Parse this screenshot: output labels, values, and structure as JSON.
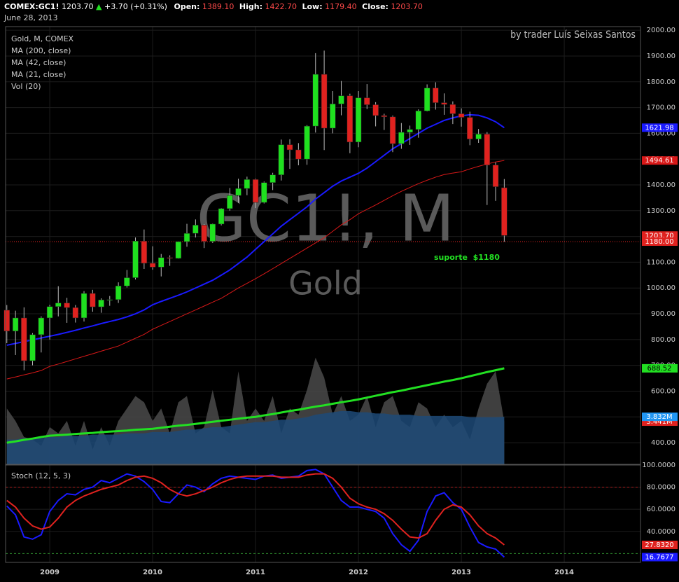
{
  "header": {
    "symbol": "COMEX:GC1!",
    "last": "1203.70",
    "arrow": "▲",
    "change": "+3.70 (+0.31%)",
    "date": "June 28, 2013",
    "ohlc": [
      {
        "label": "Open:",
        "value": "1389.10"
      },
      {
        "label": "High:",
        "value": "1422.70"
      },
      {
        "label": "Low:",
        "value": "1179.40"
      },
      {
        "label": "Close:",
        "value": "1203.70"
      }
    ]
  },
  "chart_data": [
    {
      "type": "candlestick",
      "credit": "by trader Luís Seixas Santos",
      "watermark": "GC1!, M",
      "watermark_sub": "Gold",
      "legend": [
        "Gold, M, COMEX",
        "MA (200, close)",
        "MA (42, close)",
        "MA (21, close)",
        "Vol (20)"
      ],
      "up_color": "#1fe01f",
      "down_color": "#e0221f",
      "x": [
        2008.583,
        2008.667,
        2008.75,
        2008.833,
        2008.917,
        2009,
        2009.083,
        2009.167,
        2009.25,
        2009.333,
        2009.417,
        2009.5,
        2009.583,
        2009.667,
        2009.75,
        2009.833,
        2009.917,
        2010,
        2010.083,
        2010.167,
        2010.25,
        2010.333,
        2010.417,
        2010.5,
        2010.583,
        2010.667,
        2010.75,
        2010.833,
        2010.917,
        2011,
        2011.083,
        2011.167,
        2011.25,
        2011.333,
        2011.417,
        2011.5,
        2011.583,
        2011.667,
        2011.75,
        2011.833,
        2011.917,
        2012,
        2012.083,
        2012.167,
        2012.25,
        2012.333,
        2012.417,
        2012.5,
        2012.583,
        2012.667,
        2012.75,
        2012.833,
        2012.917,
        2013,
        2013.083,
        2013.167,
        2013.25,
        2013.333,
        2013.417
      ],
      "open": [
        914,
        833,
        884,
        718,
        819,
        884,
        928,
        942,
        924,
        884,
        979,
        927,
        954,
        955,
        1008,
        1040,
        1182,
        1096,
        1081,
        1118,
        1115,
        1180,
        1212,
        1244,
        1181,
        1248,
        1308,
        1359,
        1386,
        1421,
        1332,
        1409,
        1439,
        1556,
        1536,
        1500,
        1628,
        1829,
        1620,
        1714,
        1746,
        1566,
        1738,
        1711,
        1669,
        1664,
        1560,
        1604,
        1615,
        1687,
        1776,
        1719,
        1712,
        1676,
        1662,
        1578,
        1597,
        1477,
        1389.1
      ],
      "high": [
        934,
        912,
        925,
        825,
        890,
        935,
        1007,
        962,
        934,
        988,
        993,
        960,
        969,
        1022,
        1070,
        1196,
        1227,
        1162,
        1132,
        1127,
        1180,
        1249,
        1266,
        1248,
        1250,
        1310,
        1388,
        1424,
        1432,
        1424,
        1413,
        1447,
        1576,
        1577,
        1562,
        1632,
        1911,
        1921,
        1764,
        1803,
        1754,
        1764,
        1791,
        1721,
        1676,
        1669,
        1640,
        1630,
        1693,
        1790,
        1798,
        1755,
        1724,
        1697,
        1684,
        1617,
        1605,
        1487,
        1422.7
      ],
      "low": [
        786,
        740,
        681,
        700,
        750,
        800,
        890,
        865,
        866,
        870,
        908,
        904,
        931,
        942,
        1002,
        1033,
        1074,
        1071,
        1045,
        1086,
        1114,
        1160,
        1196,
        1155,
        1175,
        1243,
        1300,
        1330,
        1360,
        1310,
        1328,
        1380,
        1417,
        1462,
        1476,
        1478,
        1603,
        1535,
        1600,
        1670,
        1523,
        1546,
        1694,
        1627,
        1613,
        1527,
        1540,
        1555,
        1583,
        1685,
        1692,
        1672,
        1636,
        1626,
        1554,
        1563,
        1322,
        1338,
        1179.4
      ],
      "close": [
        833,
        884,
        718,
        819,
        884,
        928,
        942,
        924,
        884,
        979,
        927,
        954,
        955,
        1008,
        1040,
        1182,
        1096,
        1081,
        1118,
        1115,
        1180,
        1212,
        1244,
        1181,
        1248,
        1308,
        1359,
        1386,
        1421,
        1332,
        1409,
        1439,
        1556,
        1536,
        1500,
        1628,
        1829,
        1620,
        1714,
        1746,
        1566,
        1738,
        1711,
        1669,
        1664,
        1560,
        1604,
        1615,
        1687,
        1776,
        1719,
        1712,
        1676,
        1662,
        1578,
        1597,
        1477,
        1393,
        1203.7
      ],
      "close_label": "1203.70",
      "series": [
        {
          "color": "#22e022",
          "width": 3,
          "last_label": "688.52",
          "values": [
            400,
            405,
            411,
            416,
            422,
            427,
            429,
            431,
            434,
            436,
            438,
            441,
            443,
            445,
            447,
            450,
            452,
            454,
            458,
            462,
            466,
            469,
            473,
            477,
            481,
            485,
            489,
            493,
            497,
            500,
            506,
            511,
            517,
            523,
            528,
            534,
            540,
            545,
            551,
            557,
            562,
            568,
            575,
            582,
            589,
            596,
            602,
            609,
            616,
            623,
            630,
            637,
            643,
            650,
            658,
            666,
            674,
            681,
            688.52
          ]
        },
        {
          "color": "#d81818",
          "width": 1,
          "last_label": "1494.61",
          "values": [
            647,
            655,
            663,
            671,
            680,
            696,
            705,
            715,
            725,
            735,
            745,
            755,
            765,
            775,
            790,
            805,
            820,
            840,
            855,
            870,
            885,
            900,
            915,
            930,
            945,
            960,
            980,
            1000,
            1018,
            1036,
            1055,
            1075,
            1095,
            1115,
            1135,
            1155,
            1175,
            1195,
            1220,
            1245,
            1265,
            1288,
            1305,
            1322,
            1340,
            1358,
            1375,
            1390,
            1405,
            1418,
            1430,
            1440,
            1446,
            1451,
            1462,
            1472,
            1481,
            1489,
            1494.61
          ]
        },
        {
          "color": "#1a1aff",
          "width": 2,
          "last_label": "1621.98",
          "values": [
            778,
            785,
            792,
            799,
            806,
            813,
            820,
            828,
            836,
            845,
            853,
            862,
            870,
            878,
            888,
            900,
            915,
            935,
            948,
            960,
            972,
            985,
            1000,
            1015,
            1030,
            1050,
            1070,
            1095,
            1120,
            1150,
            1180,
            1210,
            1240,
            1265,
            1290,
            1315,
            1345,
            1370,
            1395,
            1415,
            1430,
            1445,
            1465,
            1490,
            1515,
            1540,
            1560,
            1580,
            1600,
            1620,
            1635,
            1650,
            1660,
            1668,
            1672,
            1670,
            1660,
            1645,
            1621.98
          ]
        }
      ],
      "support": {
        "value": 1180,
        "label": "1180.00",
        "annotation": "suporte  $1180",
        "color": "#e0221f",
        "text_color": "#22e022"
      },
      "volume": {
        "ylim": [
          0,
          9.2
        ],
        "series": [
          {
            "color": "#4a4a4a",
            "label_color": "#e0221f",
            "last_label": "3.441M",
            "values": [
              4.5,
              3.5,
              2.2,
              2.0,
              1.5,
              3.0,
              2.5,
              3.5,
              1.5,
              3.5,
              1.2,
              3.0,
              1.5,
              3.5,
              4.5,
              5.5,
              5.0,
              3.5,
              4.5,
              2.5,
              5.0,
              5.5,
              2.5,
              3.0,
              6.0,
              3.0,
              2.5,
              7.5,
              3.5,
              4.5,
              3.5,
              5.5,
              2.5,
              4.5,
              4.0,
              6.0,
              8.6,
              7.0,
              4.0,
              5.5,
              3.5,
              4.0,
              5.5,
              3.0,
              5.0,
              5.5,
              3.5,
              3.0,
              5.0,
              4.5,
              3.0,
              4.0,
              3.0,
              3.5,
              2.0,
              4.5,
              6.5,
              7.5,
              3.441
            ]
          },
          {
            "color": "#1d4a78",
            "label_color": "#2196f3",
            "last_label": "3.832M",
            "values": [
              2.0,
              2.0,
              2.1,
              2.1,
              2.1,
              2.2,
              2.2,
              2.3,
              2.3,
              2.3,
              2.4,
              2.4,
              2.4,
              2.4,
              2.5,
              2.5,
              2.5,
              2.6,
              2.6,
              2.6,
              2.7,
              2.8,
              2.8,
              2.9,
              3.0,
              3.0,
              3.1,
              3.2,
              3.3,
              3.4,
              3.4,
              3.5,
              3.6,
              3.6,
              3.7,
              3.8,
              4.0,
              4.1,
              4.2,
              4.3,
              4.3,
              4.2,
              4.2,
              4.1,
              4.1,
              4.0,
              4.0,
              4.0,
              3.9,
              3.9,
              3.9,
              3.9,
              3.9,
              3.9,
              3.8,
              3.8,
              3.8,
              3.8,
              3.832
            ]
          }
        ]
      },
      "xlim": [
        2008.571,
        2014.741
      ],
      "xticks": [
        2009,
        2010,
        2011,
        2012,
        2013,
        2014
      ],
      "ylim": [
        316,
        2014
      ],
      "yticks": [
        {
          "value": 400,
          "label": "400.00"
        },
        {
          "value": 500,
          "label": "500.00"
        },
        {
          "value": 600,
          "label": "600.00"
        },
        {
          "value": 700,
          "label": "700.00"
        },
        {
          "value": 800,
          "label": "800.00"
        },
        {
          "value": 900,
          "label": "900.00"
        },
        {
          "value": 1000,
          "label": "1000.00"
        },
        {
          "value": 1100,
          "label": "1100.00"
        },
        {
          "value": 1200,
          "label": "1200.00"
        },
        {
          "value": 1300,
          "label": "1300.00"
        },
        {
          "value": 1400,
          "label": "1400.00"
        },
        {
          "value": 1500,
          "label": "1500.00"
        },
        {
          "value": 1600,
          "label": "1600.00"
        },
        {
          "value": 1700,
          "label": "1700.00"
        },
        {
          "value": 1800,
          "label": "1800.00"
        },
        {
          "value": 1900,
          "label": "1900.00"
        },
        {
          "value": 2000,
          "label": "2000.00"
        }
      ],
      "grid": true
    },
    {
      "type": "line",
      "title": "Stoch (12, 5, 3)",
      "series": [
        {
          "color": "#1a1aff",
          "last_label": "16.7677",
          "values": [
            63,
            55,
            35,
            33,
            37,
            58,
            68,
            74,
            73,
            78,
            80,
            86,
            84,
            88,
            92,
            90,
            85,
            78,
            67,
            66,
            74,
            82,
            80,
            76,
            83,
            88,
            90,
            89,
            88,
            87,
            90,
            91,
            88,
            89,
            90,
            95,
            96,
            92,
            80,
            68,
            62,
            62,
            60,
            58,
            52,
            38,
            28,
            22,
            32,
            58,
            72,
            75,
            66,
            60,
            44,
            30,
            26,
            24,
            16.7677
          ]
        },
        {
          "color": "#e0221f",
          "last_label": "27.8320",
          "values": [
            68,
            62,
            52,
            45,
            42,
            44,
            52,
            62,
            68,
            72,
            75,
            78,
            80,
            82,
            86,
            89,
            90,
            88,
            84,
            78,
            74,
            72,
            74,
            77,
            80,
            84,
            87,
            89,
            90,
            90,
            90,
            90,
            89,
            89,
            89,
            91,
            92,
            92,
            88,
            80,
            70,
            65,
            62,
            60,
            56,
            50,
            42,
            35,
            34,
            38,
            50,
            60,
            64,
            62,
            55,
            45,
            38,
            34,
            27.832
          ]
        }
      ],
      "levels": [
        {
          "value": 80,
          "color": "#b01818"
        },
        {
          "value": 20,
          "color": "#2f8f2f"
        }
      ],
      "ylim": [
        12,
        100
      ],
      "yticks": [
        {
          "value": 40,
          "label": "40.0000"
        },
        {
          "value": 60,
          "label": "60.0000"
        },
        {
          "value": 80,
          "label": "80.0000"
        },
        {
          "value": 100,
          "label": "100.0000"
        }
      ],
      "grid": true
    }
  ]
}
